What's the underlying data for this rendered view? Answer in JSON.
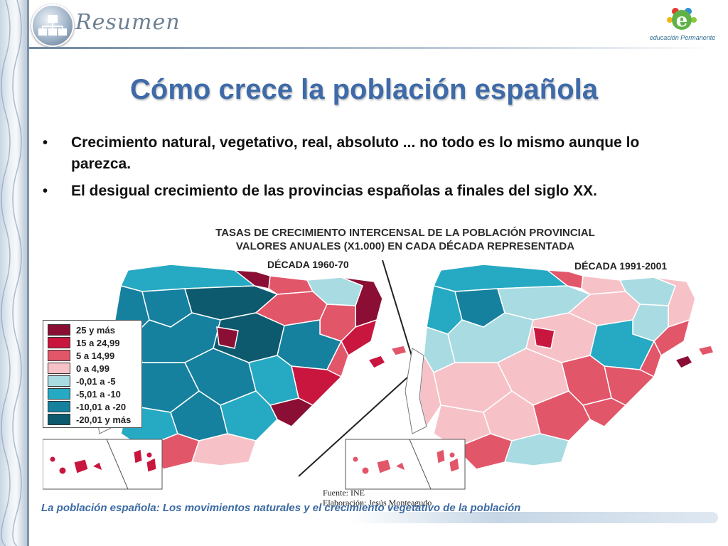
{
  "header": {
    "title": "Resumen",
    "logo_icon": "org-chart-icon",
    "brand_logo_text": "educación Permanente"
  },
  "title": "Cómo crece la población española",
  "bullets": [
    {
      "marker": "•",
      "text": "Crecimiento natural, vegetativo, real, absoluto ... no todo es lo mismo aunque lo parezca."
    },
    {
      "marker": "•",
      "text": " El desigual crecimiento de las provincias españolas a finales del siglo XX."
    }
  ],
  "figure": {
    "title_line1": "TASAS DE CRECIMIENTO INTERCENSAL DE LA POBLACIÓN PROVINCIAL",
    "title_line2": "VALORES ANUALES (X1.000) EN CADA DÉCADA REPRESENTADA",
    "decade_left": "DÉCADA 1960-70",
    "decade_right": "DÉCADA 1991-2001",
    "source_line1": "Fuente: INE",
    "source_line2": "Elaboración: Jesús Monteagudo",
    "legend": [
      {
        "label": "25 y más",
        "color": "#8b0f34"
      },
      {
        "label": "15 a 24,99",
        "color": "#c8163f"
      },
      {
        "label": "5 a 14,99",
        "color": "#e2566a"
      },
      {
        "label": "0 a 4,99",
        "color": "#f6c2c8"
      },
      {
        "label": "-0,01 a -5",
        "color": "#a9dbe2"
      },
      {
        "label": "-5,01 a -10",
        "color": "#26a9c3"
      },
      {
        "label": "-10,01 a -20",
        "color": "#16809f"
      },
      {
        "label": "-20,01 y más",
        "color": "#0d5a6e"
      }
    ]
  },
  "footer": "La población española: Los movimientos naturales y el crecimiento vegetativo de la población"
}
